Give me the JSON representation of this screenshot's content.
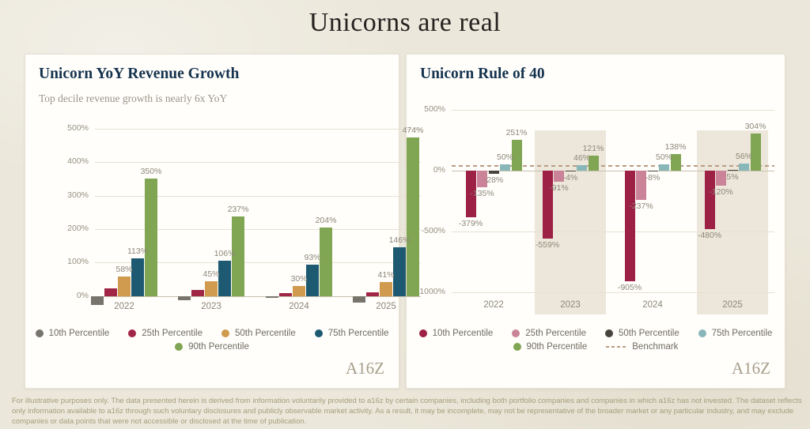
{
  "page_title": "Unicorns are real",
  "logo_text": "A16Z",
  "footer": {
    "disclaimer": "For illustrative purposes only. The data presented herein is derived from information voluntarily provided to a16z by certain companies, including both portfolio companies and companies in which a16z has not invested. The dataset reflects only information available to a16z through such voluntary disclosures and publicly observable market activity. As a result, it may be incomplete, may not be representative of the broader market or any particular industry, and may exclude companies or data points that were not accessible or disclosed at the time of publication."
  },
  "colors": {
    "background": "#ebe7da",
    "panel": "#fffefb",
    "title_navy": "#15334e",
    "label_gray": "#8d8779",
    "benchmark_tan": "#bb9c82"
  },
  "chart_data": [
    {
      "type": "bar",
      "title": "Unicorn YoY Revenue Growth",
      "subtitle": "Top decile revenue growth is nearly 6x YoY",
      "xlabel": "",
      "ylabel": "",
      "ylim": [
        -60,
        500
      ],
      "grid": true,
      "legend_position": "bottom",
      "categories": [
        "2022",
        "2023",
        "2024",
        "2025"
      ],
      "yticks": [
        {
          "v": 0,
          "label": "0%"
        },
        {
          "v": 100,
          "label": "100%"
        },
        {
          "v": 200,
          "label": "200%"
        },
        {
          "v": 300,
          "label": "300%"
        },
        {
          "v": 400,
          "label": "400%"
        },
        {
          "v": 500,
          "label": "500%"
        }
      ],
      "series": [
        {
          "name": "10th Percentile",
          "color": "#77746c",
          "values": [
            -28,
            -12,
            -6,
            -20
          ],
          "labels": [
            null,
            null,
            null,
            null
          ]
        },
        {
          "name": "25th Percentile",
          "color": "#a12646",
          "values": [
            23,
            17,
            8,
            12
          ],
          "labels": [
            null,
            null,
            null,
            null
          ]
        },
        {
          "name": "50th Percentile",
          "color": "#d09a4f",
          "values": [
            58,
            45,
            30,
            41
          ],
          "labels": [
            "58%",
            "45%",
            "30%",
            "41%"
          ]
        },
        {
          "name": "75th Percentile",
          "color": "#1d5a72",
          "values": [
            113,
            106,
            93,
            146
          ],
          "labels": [
            "113%",
            "106%",
            "93%",
            "146%"
          ]
        },
        {
          "name": "90th Percentile",
          "color": "#80a553",
          "values": [
            350,
            237,
            204,
            474
          ],
          "labels": [
            "350%",
            "237%",
            "204%",
            "474%"
          ]
        }
      ],
      "legend_rows": [
        [
          {
            "type": "dot",
            "color": "#77746c",
            "label": "10th Percentile"
          },
          {
            "type": "dot",
            "color": "#a12646",
            "label": "25th Percentile"
          },
          {
            "type": "dot",
            "color": "#d09a4f",
            "label": "50th Percentile"
          },
          {
            "type": "dot",
            "color": "#1d5a72",
            "label": "75th Percentile"
          }
        ],
        [
          {
            "type": "dot",
            "color": "#80a553",
            "label": "90th Percentile"
          }
        ]
      ]
    },
    {
      "type": "bar",
      "title": "Unicorn Rule of 40",
      "subtitle": "",
      "xlabel": "",
      "ylabel": "",
      "ylim": [
        -1050,
        500
      ],
      "grid": true,
      "legend_position": "bottom",
      "categories": [
        "2022",
        "2023",
        "2024",
        "2025"
      ],
      "highlight_bands": [
        "2023",
        "2025"
      ],
      "benchmark": {
        "value": 40,
        "label": "Benchmark"
      },
      "yticks": [
        {
          "v": 500,
          "label": "500%"
        },
        {
          "v": 0,
          "label": "0%"
        },
        {
          "v": -500,
          "label": "-500%"
        },
        {
          "v": -1000,
          "label": "-1000%"
        }
      ],
      "series": [
        {
          "name": "10th Percentile",
          "color": "#9d2145",
          "values": [
            -379,
            -559,
            -905,
            -480
          ],
          "labels": [
            "-379%",
            "-559%",
            "-905%",
            "-480%"
          ]
        },
        {
          "name": "25th Percentile",
          "color": "#ca8398",
          "values": [
            -135,
            -91,
            -237,
            -120
          ],
          "labels": [
            "-135%",
            "-91%",
            "-237%",
            "-120%"
          ]
        },
        {
          "name": "50th Percentile",
          "color": "#46443c",
          "values": [
            -28,
            -4,
            -8,
            5
          ],
          "labels": [
            "-28%",
            "-4%",
            "-8%",
            "5%"
          ]
        },
        {
          "name": "75th Percentile",
          "color": "#89b7b9",
          "values": [
            50,
            46,
            50,
            56
          ],
          "labels": [
            "50%",
            "46%",
            "50%",
            "56%"
          ]
        },
        {
          "name": "90th Percentile",
          "color": "#80a553",
          "values": [
            251,
            121,
            138,
            304
          ],
          "labels": [
            "251%",
            "121%",
            "138%",
            "304%"
          ]
        }
      ],
      "legend_rows": [
        [
          {
            "type": "dot",
            "color": "#9d2145",
            "label": "10th Percentile"
          },
          {
            "type": "dot",
            "color": "#ca8398",
            "label": "25th Percentile"
          },
          {
            "type": "dot",
            "color": "#46443c",
            "label": "50th Percentile"
          },
          {
            "type": "dot",
            "color": "#89b7b9",
            "label": "75th Percentile"
          }
        ],
        [
          {
            "type": "dot",
            "color": "#80a553",
            "label": "90th Percentile"
          },
          {
            "type": "dash",
            "color": "#bb9c82",
            "label": "Benchmark"
          }
        ]
      ]
    }
  ]
}
